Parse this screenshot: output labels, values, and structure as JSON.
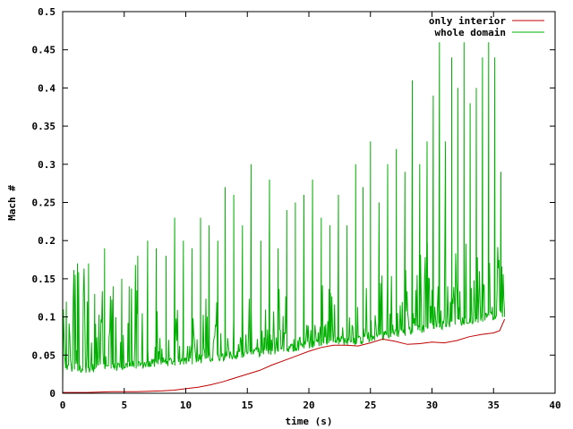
{
  "chart_data": {
    "type": "line",
    "title": "",
    "xlabel": "time (s)",
    "ylabel": "Mach #",
    "xlim": [
      0,
      40
    ],
    "ylim": [
      0,
      0.5
    ],
    "xticks": [
      0,
      5,
      10,
      15,
      20,
      25,
      30,
      35,
      40
    ],
    "yticks": [
      0,
      0.05,
      0.1,
      0.15,
      0.2,
      0.25,
      0.3,
      0.35,
      0.4,
      0.45,
      0.5
    ],
    "xtick_labels": [
      "0",
      "5",
      "10",
      "15",
      "20",
      "25",
      "30",
      "35",
      "40"
    ],
    "ytick_labels": [
      "0",
      "0.05",
      "0.1",
      "0.15",
      "0.2",
      "0.25",
      "0.3",
      "0.35",
      "0.4",
      "0.45",
      "0.5"
    ],
    "grid": false,
    "legend_position": "top-right",
    "series": [
      {
        "name": "only interior",
        "color": "#c00000",
        "x": [
          0,
          2,
          4,
          6,
          8,
          9,
          10,
          11,
          12,
          13,
          14,
          15,
          16,
          17,
          18,
          19,
          20,
          21,
          22,
          23,
          24,
          25,
          26,
          27,
          28,
          29,
          30,
          31,
          32,
          33,
          34,
          35,
          35.5,
          35.9
        ],
        "y": [
          0.001,
          0.001,
          0.002,
          0.002,
          0.003,
          0.004,
          0.006,
          0.008,
          0.011,
          0.015,
          0.02,
          0.025,
          0.03,
          0.037,
          0.043,
          0.049,
          0.055,
          0.06,
          0.063,
          0.063,
          0.062,
          0.066,
          0.071,
          0.068,
          0.064,
          0.065,
          0.067,
          0.066,
          0.069,
          0.074,
          0.077,
          0.079,
          0.082,
          0.097
        ]
      },
      {
        "name": "whole domain",
        "color": "#00b000",
        "baseline": {
          "x": [
            0,
            1,
            2,
            3,
            4,
            5,
            6,
            7,
            8,
            9,
            10,
            12,
            14,
            15,
            16,
            17,
            18,
            19,
            20,
            21,
            22,
            23,
            24,
            25,
            26,
            27,
            28,
            29,
            30,
            31,
            32,
            33,
            34,
            35,
            35.9
          ],
          "y": [
            0.03,
            0.026,
            0.027,
            0.028,
            0.028,
            0.03,
            0.032,
            0.032,
            0.035,
            0.036,
            0.037,
            0.04,
            0.044,
            0.046,
            0.048,
            0.05,
            0.052,
            0.055,
            0.058,
            0.062,
            0.064,
            0.063,
            0.063,
            0.067,
            0.07,
            0.072,
            0.075,
            0.078,
            0.081,
            0.084,
            0.087,
            0.09,
            0.093,
            0.095,
            0.1
          ]
        },
        "peaks": {
          "x": [
            0.3,
            1.2,
            2.1,
            2.6,
            3.4,
            4.1,
            4.8,
            5.4,
            6.1,
            6.9,
            7.6,
            8.4,
            9.1,
            9.8,
            10.5,
            11.2,
            11.9,
            12.6,
            13.2,
            13.9,
            14.6,
            15.3,
            16.1,
            16.8,
            17.5,
            18.2,
            18.9,
            19.6,
            20.3,
            21.0,
            21.7,
            22.4,
            23.1,
            23.8,
            24.4,
            25.0,
            25.7,
            26.4,
            27.1,
            27.8,
            28.4,
            29.0,
            29.6,
            30.1,
            30.6,
            31.1,
            31.6,
            32.1,
            32.6,
            33.1,
            33.6,
            34.1,
            34.6,
            35.1,
            35.6
          ],
          "y": [
            0.12,
            0.17,
            0.17,
            0.13,
            0.19,
            0.14,
            0.15,
            0.14,
            0.18,
            0.2,
            0.19,
            0.18,
            0.23,
            0.2,
            0.19,
            0.23,
            0.22,
            0.2,
            0.27,
            0.26,
            0.22,
            0.3,
            0.2,
            0.28,
            0.19,
            0.24,
            0.25,
            0.26,
            0.28,
            0.23,
            0.22,
            0.26,
            0.22,
            0.3,
            0.27,
            0.33,
            0.25,
            0.3,
            0.32,
            0.29,
            0.41,
            0.3,
            0.33,
            0.39,
            0.46,
            0.33,
            0.44,
            0.4,
            0.46,
            0.38,
            0.4,
            0.44,
            0.46,
            0.44,
            0.29
          ]
        }
      }
    ]
  }
}
